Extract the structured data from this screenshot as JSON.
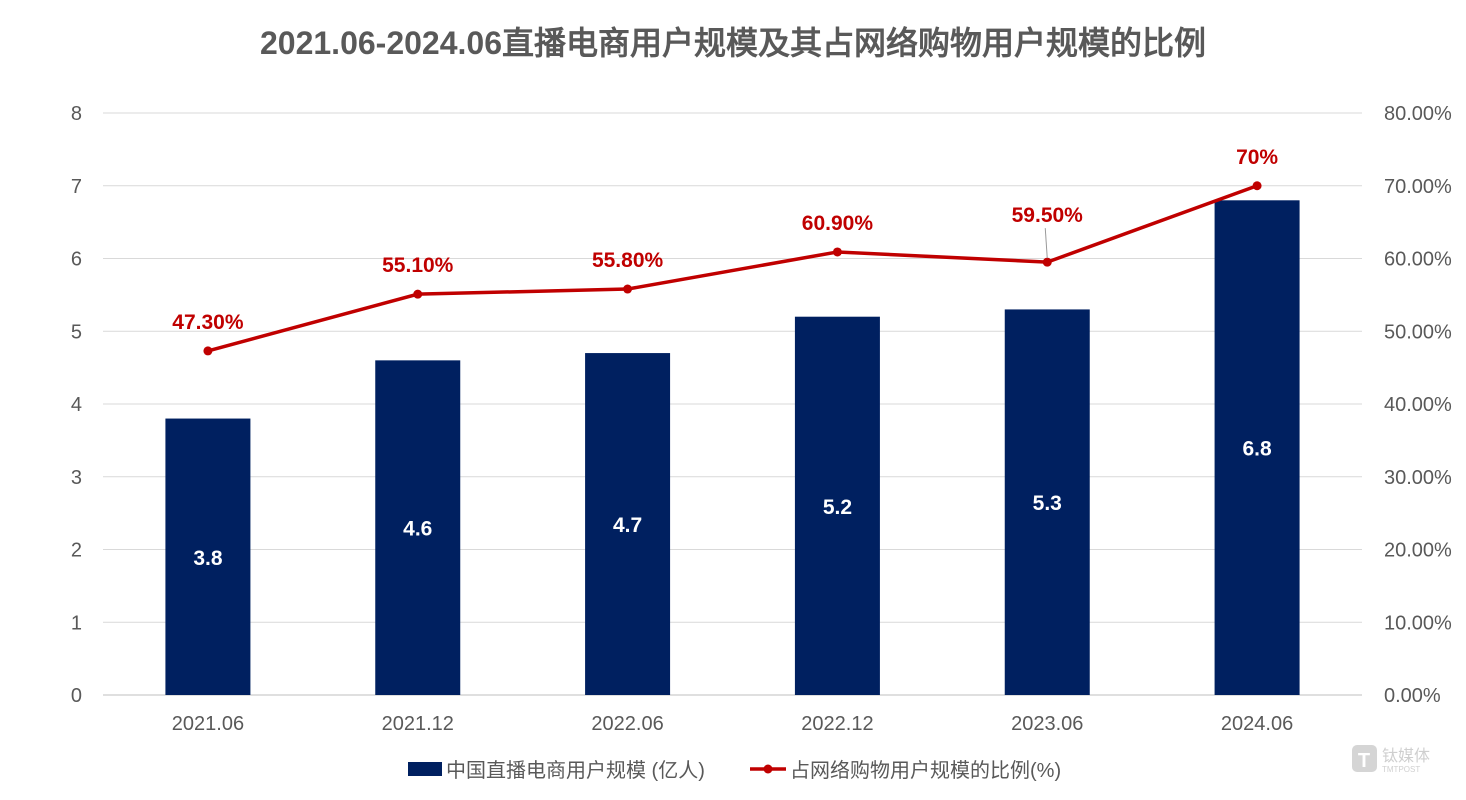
{
  "chart_data": {
    "type": "bar+line",
    "title": "2021.06-2024.06直播电商用户规模及其占网络购物用户规模的比例",
    "categories": [
      "2021.06",
      "2021.12",
      "2022.06",
      "2022.12",
      "2023.06",
      "2024.06"
    ],
    "series": [
      {
        "name": "中国直播电商用户规模 (亿人)",
        "type": "bar",
        "axis": "left",
        "values": [
          3.8,
          4.6,
          4.7,
          5.2,
          5.3,
          6.8
        ],
        "labels": [
          "3.8",
          "4.6",
          "4.7",
          "5.2",
          "5.3",
          "6.8"
        ],
        "color": "#002060"
      },
      {
        "name": "占网络购物用户规模的比例(%)",
        "type": "line",
        "axis": "right",
        "values": [
          47.3,
          55.1,
          55.8,
          60.9,
          59.5,
          70
        ],
        "labels": [
          "47.30%",
          "55.10%",
          "55.80%",
          "60.90%",
          "59.50%",
          "70%"
        ],
        "color": "#C00000"
      }
    ],
    "y_left": {
      "range": [
        0,
        8
      ],
      "ticks": [
        "0",
        "1",
        "2",
        "3",
        "4",
        "5",
        "6",
        "7",
        "8"
      ]
    },
    "y_right": {
      "range": [
        0,
        80
      ],
      "ticks": [
        "0.00%",
        "10.00%",
        "20.00%",
        "30.00%",
        "40.00%",
        "50.00%",
        "60.00%",
        "70.00%",
        "80.00%"
      ]
    },
    "grid": true,
    "legend_position": "bottom"
  },
  "watermark": {
    "text": "钛媒体",
    "subtext": "TMTPOST"
  }
}
